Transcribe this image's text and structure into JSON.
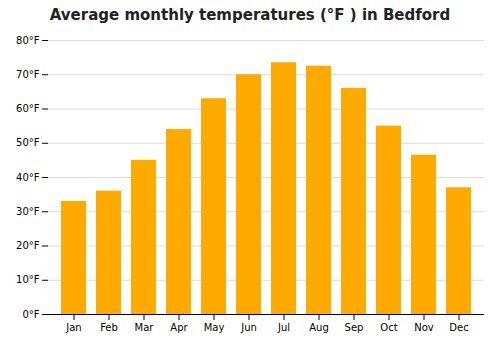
{
  "chart_data": {
    "type": "bar",
    "title": "Average monthly temperatures (°F ) in Bedford",
    "categories": [
      "Jan",
      "Feb",
      "Mar",
      "Apr",
      "May",
      "Jun",
      "Jul",
      "Aug",
      "Sep",
      "Oct",
      "Nov",
      "Dec"
    ],
    "values": [
      33,
      36,
      45,
      54,
      63,
      70,
      73.5,
      72.5,
      66,
      55,
      46.5,
      37
    ],
    "color": "#FFAA00",
    "ylim": [
      0,
      80
    ],
    "yticks": [
      {
        "value": 0,
        "label": "0°F"
      },
      {
        "value": 10,
        "label": "10°F"
      },
      {
        "value": 20,
        "label": "20°F"
      },
      {
        "value": 30,
        "label": "30°F"
      },
      {
        "value": 40,
        "label": "40°F"
      },
      {
        "value": 50,
        "label": "50°F"
      },
      {
        "value": 60,
        "label": "60°F"
      },
      {
        "value": 70,
        "label": "70°F"
      },
      {
        "value": 80,
        "label": "80°F"
      }
    ],
    "grid": true
  }
}
